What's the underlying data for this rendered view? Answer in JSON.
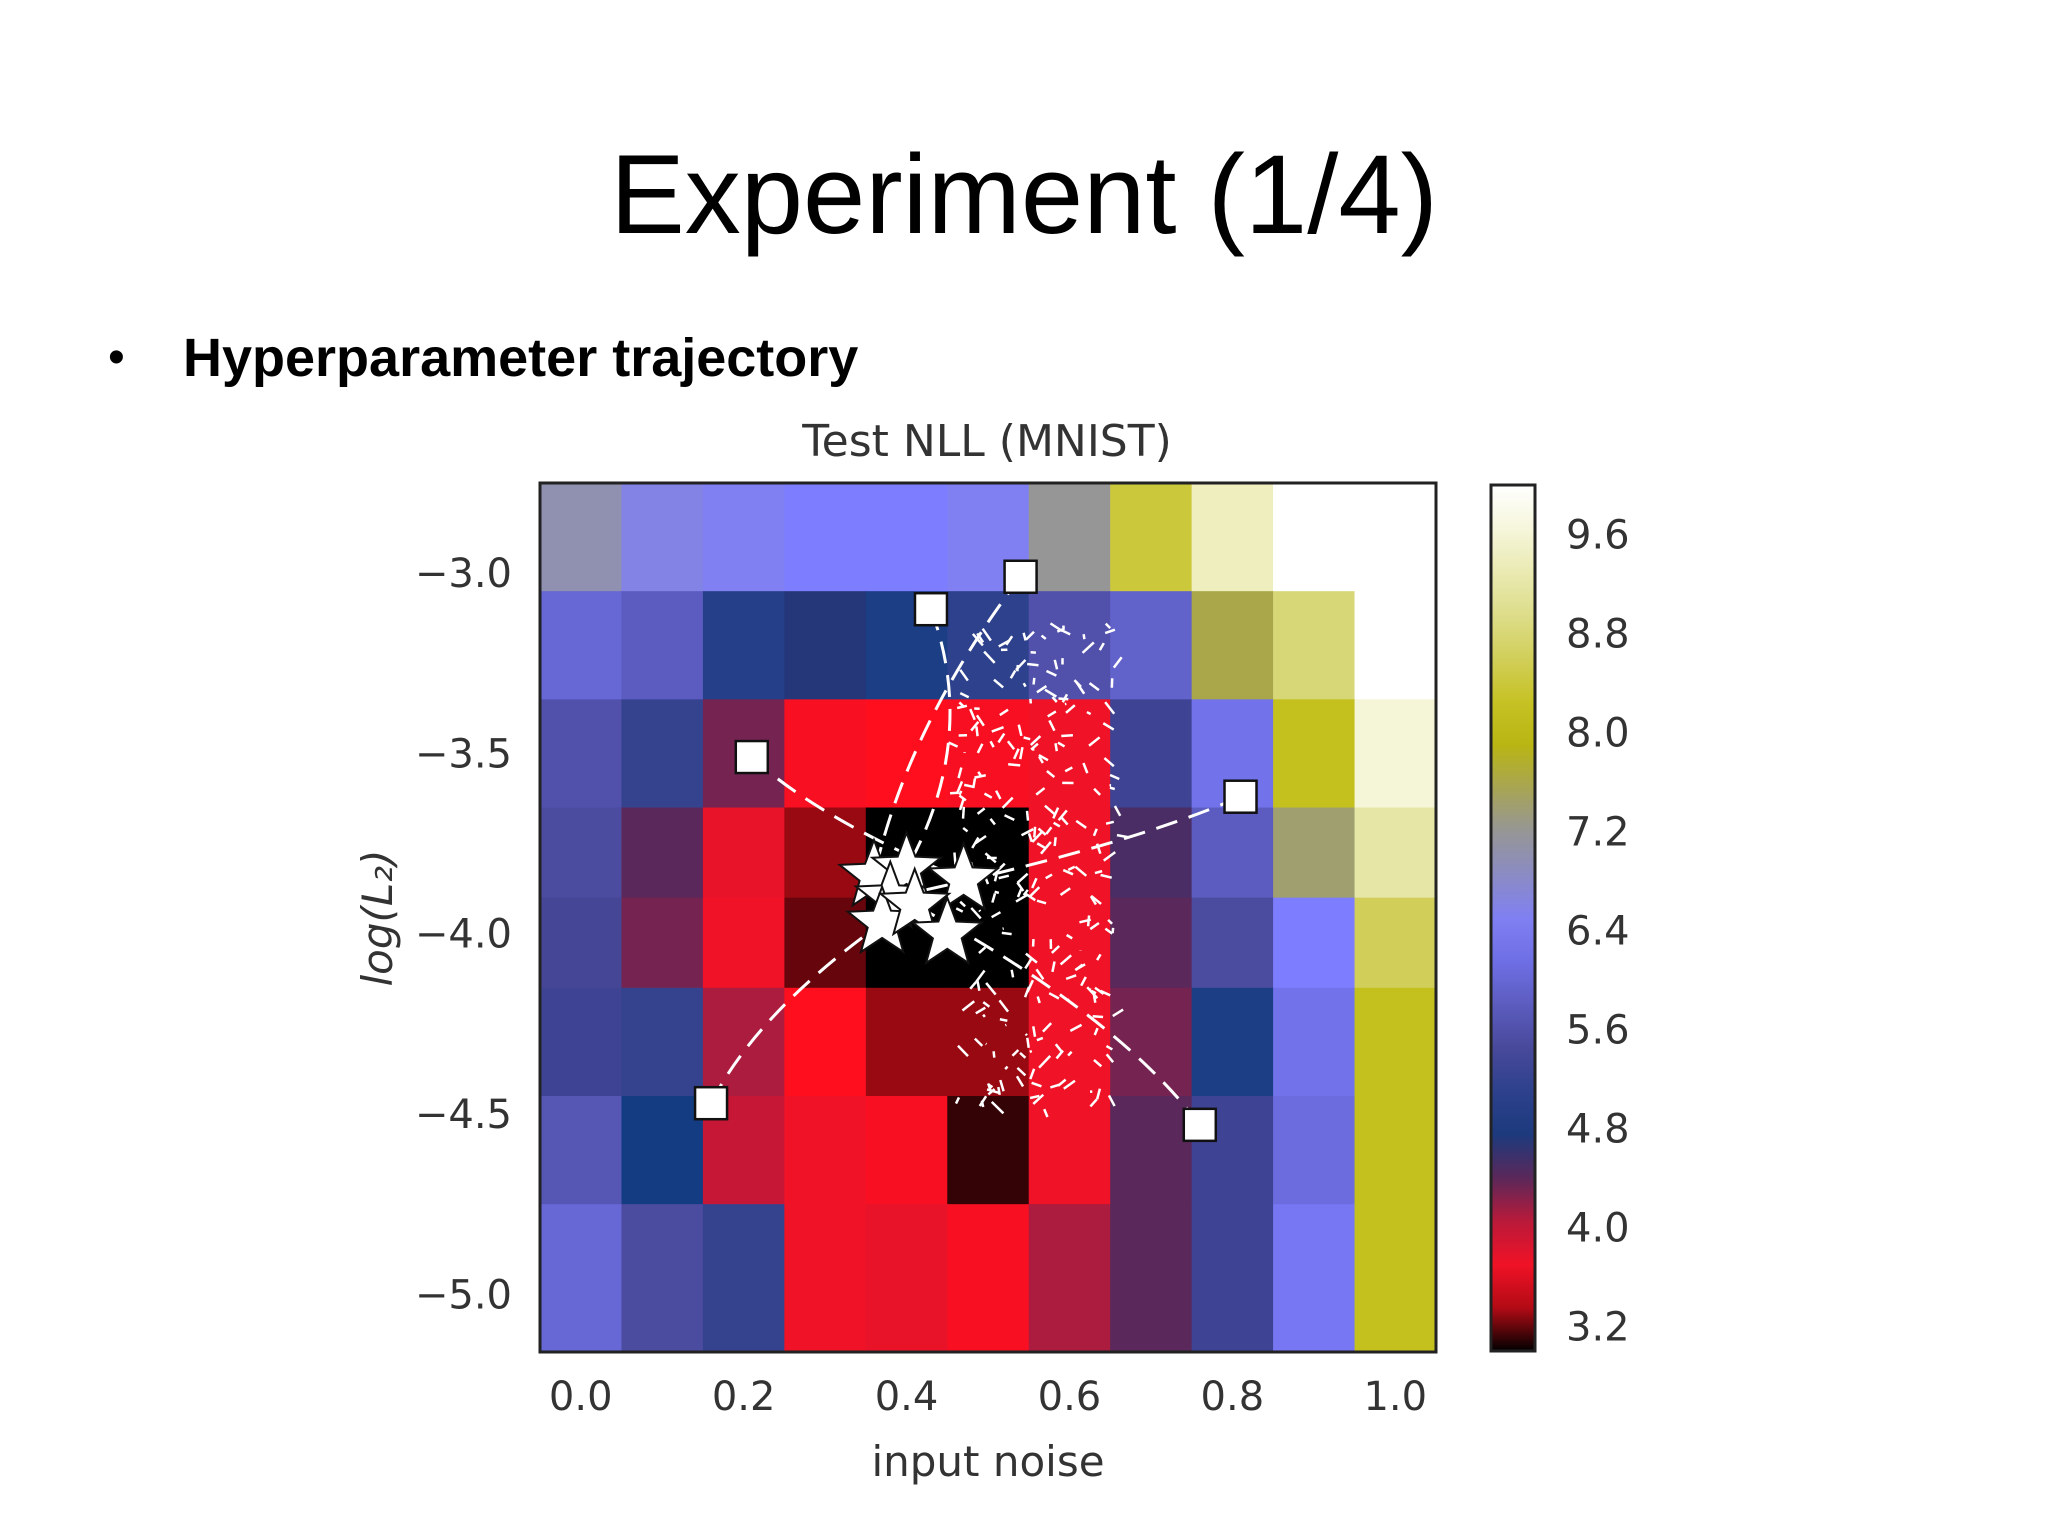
{
  "slide": {
    "title": "Experiment (1/4)",
    "bullet": "Hyperparameter trajectory"
  },
  "chart_data": {
    "type": "heatmap",
    "title": "Test NLL (MNIST)",
    "xlabel": "input noise",
    "ylabel": "log(L₂)",
    "xlim": [
      -0.05,
      1.05
    ],
    "ylim": [
      -5.16,
      -2.75
    ],
    "x_ticks": [
      "0.0",
      "0.2",
      "0.4",
      "0.6",
      "0.8",
      "1.0"
    ],
    "y_ticks": [
      "−3.0",
      "−3.5",
      "−4.0",
      "−4.5",
      "−5.0"
    ],
    "colorbar_ticks": [
      "9.6",
      "8.8",
      "8.0",
      "7.2",
      "6.4",
      "5.6",
      "4.8",
      "4.0",
      "3.2"
    ],
    "colorbar_range": [
      3.0,
      10.0
    ],
    "x_centers": [
      0.0,
      0.1,
      0.2,
      0.3,
      0.4,
      0.5,
      0.6,
      0.7,
      0.8,
      0.9,
      1.0
    ],
    "y_centers": [
      -2.9,
      -3.2,
      -3.5,
      -3.8,
      -4.0,
      -4.3,
      -4.6,
      -4.9
    ],
    "cell_values": [
      [
        7.0,
        6.6,
        6.5,
        6.4,
        6.4,
        6.5,
        7.2,
        8.4,
        9.4,
        10.0,
        10.0
      ],
      [
        6.0,
        5.8,
        5.0,
        4.7,
        4.9,
        5.1,
        5.6,
        5.9,
        7.6,
        8.8,
        10.0
      ],
      [
        5.6,
        5.2,
        4.3,
        3.6,
        3.5,
        3.6,
        3.7,
        5.3,
        6.2,
        8.2,
        9.6
      ],
      [
        5.5,
        4.4,
        3.8,
        3.3,
        3.0,
        3.0,
        3.7,
        4.5,
        5.8,
        7.4,
        9.2
      ],
      [
        5.4,
        4.3,
        3.7,
        3.2,
        3.0,
        3.0,
        3.7,
        4.4,
        5.5,
        6.4,
        8.6
      ],
      [
        5.3,
        5.2,
        4.1,
        3.5,
        3.3,
        3.3,
        3.7,
        4.3,
        4.9,
        6.2,
        8.2
      ],
      [
        5.7,
        4.8,
        4.0,
        3.7,
        3.6,
        3.1,
        3.7,
        4.4,
        5.3,
        6.1,
        8.2
      ],
      [
        6.0,
        5.5,
        5.2,
        3.7,
        3.8,
        3.6,
        4.1,
        4.4,
        5.3,
        6.3,
        8.2
      ]
    ],
    "starts": [
      {
        "x": 0.54,
        "y": -3.01
      },
      {
        "x": 0.43,
        "y": -3.1
      },
      {
        "x": 0.21,
        "y": -3.51
      },
      {
        "x": 0.81,
        "y": -3.62
      },
      {
        "x": 0.16,
        "y": -4.47
      },
      {
        "x": 0.76,
        "y": -4.53
      }
    ],
    "ends": [
      {
        "x": 0.36,
        "y": -3.84
      },
      {
        "x": 0.4,
        "y": -3.82
      },
      {
        "x": 0.47,
        "y": -3.85
      },
      {
        "x": 0.38,
        "y": -3.9
      },
      {
        "x": 0.37,
        "y": -3.97
      },
      {
        "x": 0.41,
        "y": -3.92
      },
      {
        "x": 0.45,
        "y": -4.0
      }
    ],
    "grid": false
  }
}
